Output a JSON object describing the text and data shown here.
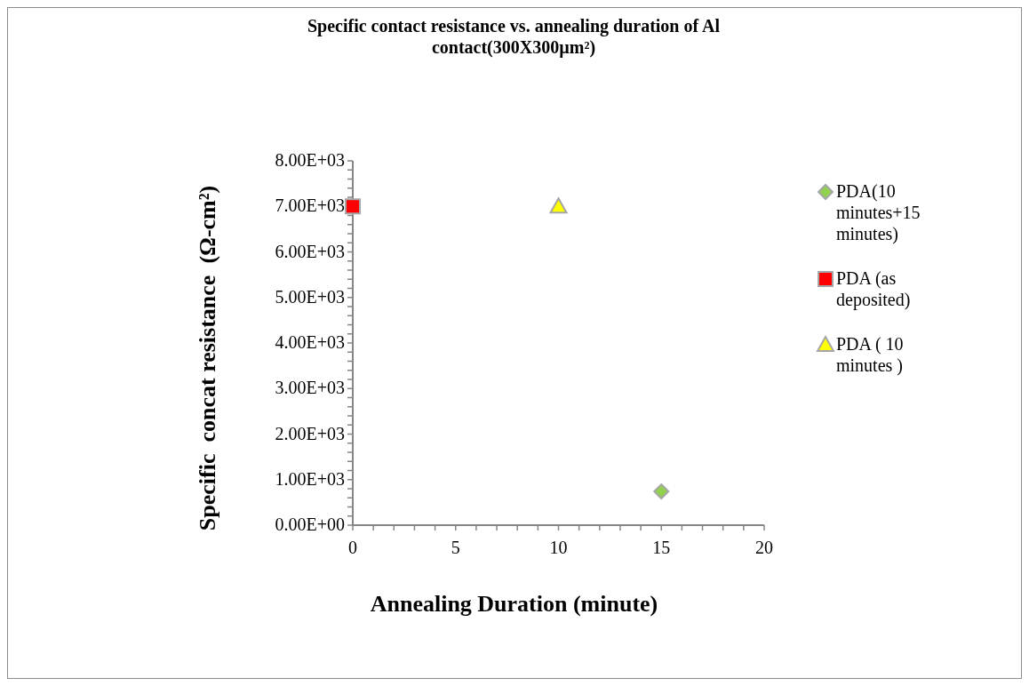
{
  "chart_data": {
    "type": "scatter",
    "title": "Specific contact resistance vs. annealing duration of Al contact(300X300µm²)",
    "xlabel": "Annealing Duration (minute)",
    "ylabel": "Specific  concat resistance  (Ω-cm²)",
    "xlim": [
      0,
      20
    ],
    "ylim": [
      0,
      8000
    ],
    "xticks": [
      0,
      {
        "value": 1,
        "label": null
      },
      {
        "value": 2,
        "label": null
      },
      {
        "value": 3,
        "label": null
      },
      {
        "value": 4,
        "label": null
      },
      5,
      {
        "value": 6,
        "label": null
      },
      {
        "value": 7,
        "label": null
      },
      {
        "value": 8,
        "label": null
      },
      {
        "value": 9,
        "label": null
      },
      10,
      {
        "value": 11,
        "label": null
      },
      {
        "value": 12,
        "label": null
      },
      {
        "value": 13,
        "label": null
      },
      {
        "value": 14,
        "label": null
      },
      15,
      {
        "value": 16,
        "label": null
      },
      {
        "value": 17,
        "label": null
      },
      {
        "value": 18,
        "label": null
      },
      {
        "value": 19,
        "label": null
      },
      20
    ],
    "yticks": [
      {
        "value": 0,
        "label": "0.00E+00"
      },
      {
        "value": 200,
        "label": null
      },
      {
        "value": 400,
        "label": null
      },
      {
        "value": 600,
        "label": null
      },
      {
        "value": 800,
        "label": null
      },
      {
        "value": 1000,
        "label": "1.00E+03"
      },
      {
        "value": 1200,
        "label": null
      },
      {
        "value": 1400,
        "label": null
      },
      {
        "value": 1600,
        "label": null
      },
      {
        "value": 1800,
        "label": null
      },
      {
        "value": 2000,
        "label": "2.00E+03"
      },
      {
        "value": 2200,
        "label": null
      },
      {
        "value": 2400,
        "label": null
      },
      {
        "value": 2600,
        "label": null
      },
      {
        "value": 2800,
        "label": null
      },
      {
        "value": 3000,
        "label": "3.00E+03"
      },
      {
        "value": 3200,
        "label": null
      },
      {
        "value": 3400,
        "label": null
      },
      {
        "value": 3600,
        "label": null
      },
      {
        "value": 3800,
        "label": null
      },
      {
        "value": 4000,
        "label": "4.00E+03"
      },
      {
        "value": 4200,
        "label": null
      },
      {
        "value": 4400,
        "label": null
      },
      {
        "value": 4600,
        "label": null
      },
      {
        "value": 4800,
        "label": null
      },
      {
        "value": 5000,
        "label": "5.00E+03"
      },
      {
        "value": 5200,
        "label": null
      },
      {
        "value": 5400,
        "label": null
      },
      {
        "value": 5600,
        "label": null
      },
      {
        "value": 5800,
        "label": null
      },
      {
        "value": 6000,
        "label": "6.00E+03"
      },
      {
        "value": 6200,
        "label": null
      },
      {
        "value": 6400,
        "label": null
      },
      {
        "value": 6600,
        "label": null
      },
      {
        "value": 6800,
        "label": null
      },
      {
        "value": 7000,
        "label": "7.00E+03"
      },
      {
        "value": 7200,
        "label": null
      },
      {
        "value": 7400,
        "label": null
      },
      {
        "value": 7600,
        "label": null
      },
      {
        "value": 7800,
        "label": null
      },
      {
        "value": 8000,
        "label": "8.00E+03"
      }
    ],
    "grid": false,
    "legend": "right",
    "series": [
      {
        "name": "PDA(10 minutes+15 minutes)",
        "color": "#92d050",
        "marker": "diamond",
        "x": [
          15
        ],
        "values": [
          740
        ]
      },
      {
        "name": "PDA (as deposited)",
        "color": "#ff0000",
        "marker": "square",
        "x": [
          0
        ],
        "values": [
          7000
        ]
      },
      {
        "name": "PDA ( 10 minutes )",
        "color": "#ffff00",
        "marker": "triangle",
        "x": [
          10
        ],
        "values": [
          7000
        ]
      }
    ]
  }
}
